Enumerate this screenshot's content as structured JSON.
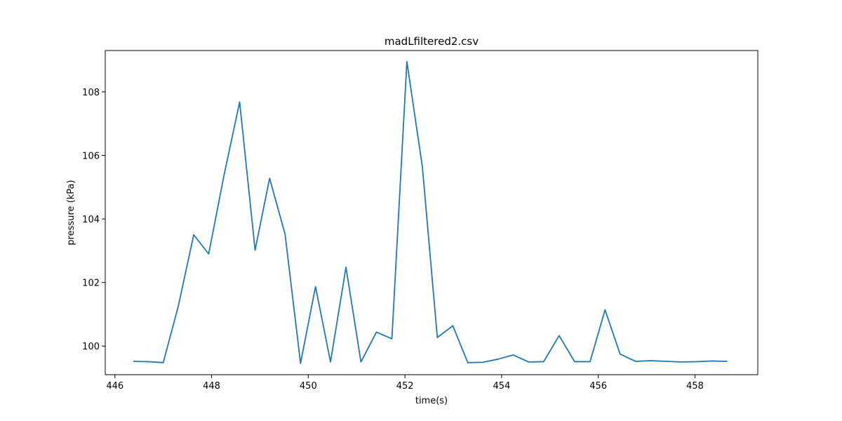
{
  "chart_data": {
    "type": "line",
    "title": "madLfiltered2.csv",
    "xlabel": "time(s)",
    "ylabel": "pressure (kPa)",
    "xlim": [
      445.8,
      459.3
    ],
    "ylim": [
      99.1,
      109.3
    ],
    "xticks": [
      446,
      448,
      450,
      452,
      454,
      456,
      458
    ],
    "yticks": [
      100,
      102,
      104,
      106,
      108
    ],
    "grid": false,
    "line_color": "#1f77b4",
    "series": [
      {
        "x": [
          446.38,
          446.69,
          447.0,
          447.31,
          447.63,
          447.94,
          448.26,
          448.58,
          448.9,
          449.2,
          449.52,
          449.84,
          450.15,
          450.46,
          450.78,
          451.09,
          451.41,
          451.73,
          452.04,
          452.36,
          452.67,
          452.99,
          453.3,
          453.61,
          453.93,
          454.24,
          454.56,
          454.87,
          455.19,
          455.51,
          455.83,
          456.14,
          456.45,
          456.77,
          457.08,
          457.4,
          457.72,
          458.04,
          458.35,
          458.67
        ],
        "y": [
          99.52,
          99.51,
          99.48,
          101.25,
          103.5,
          102.9,
          105.4,
          107.68,
          103.02,
          105.28,
          103.52,
          99.46,
          101.87,
          99.5,
          102.48,
          99.5,
          100.44,
          100.23,
          108.95,
          105.65,
          100.27,
          100.64,
          99.48,
          99.49,
          99.59,
          99.72,
          99.5,
          99.51,
          100.33,
          99.51,
          99.51,
          101.14,
          99.75,
          99.52,
          99.54,
          99.52,
          99.5,
          99.51,
          99.53,
          99.52
        ]
      }
    ]
  }
}
